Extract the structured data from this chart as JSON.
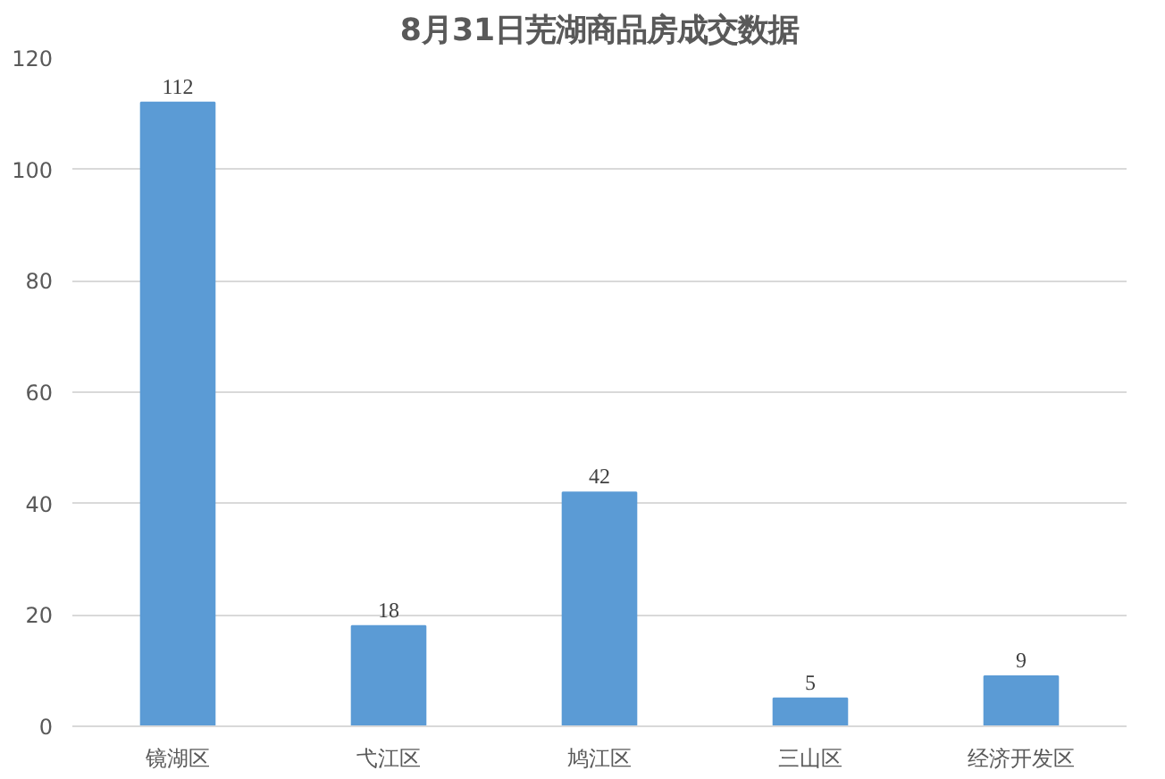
{
  "chart_data": {
    "type": "bar",
    "title": "8月31日芜湖商品房成交数据",
    "categories": [
      "镜湖区",
      "弋江区",
      "鸠江区",
      "三山区",
      "经济开发区"
    ],
    "values": [
      112,
      18,
      42,
      5,
      9
    ],
    "color": "#5b9bd5",
    "ylim": [
      0,
      120
    ],
    "yticks": [
      0,
      20,
      40,
      60,
      80,
      100,
      120
    ],
    "grid": "y",
    "data_labels": true
  }
}
